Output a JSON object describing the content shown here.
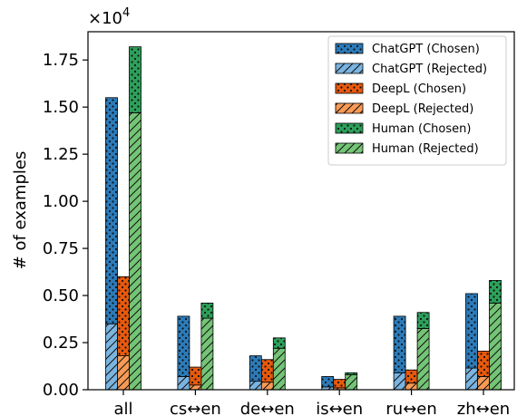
{
  "chart_data": {
    "type": "bar",
    "stacked": true,
    "grouped": true,
    "categories": [
      "all",
      "cs↔en",
      "de↔en",
      "is↔en",
      "ru↔en",
      "zh↔en"
    ],
    "scale_label": "×10",
    "scale_exponent": "4",
    "ylabel": "# of examples",
    "xlabel": "",
    "ylim": [
      0,
      19000
    ],
    "yticks": [
      0,
      2500,
      5000,
      7500,
      10000,
      12500,
      15000,
      17500
    ],
    "ytick_labels": [
      "0.00",
      "0.25",
      "0.50",
      "0.75",
      "1.00",
      "1.25",
      "1.50",
      "1.75"
    ],
    "grid": false,
    "legend_position": "top-right",
    "groups": [
      {
        "name": "ChatGPT",
        "color": "#2b7bba",
        "light_color": "#7ab4e0",
        "rejected": [
          3500,
          700,
          450,
          150,
          900,
          1150
        ],
        "chosen": [
          12000,
          3200,
          1350,
          550,
          3000,
          3950
        ]
      },
      {
        "name": "DeepL",
        "color": "#e8590c",
        "light_color": "#f89a55",
        "rejected": [
          1800,
          250,
          400,
          100,
          350,
          700
        ],
        "chosen": [
          4200,
          950,
          1200,
          450,
          700,
          1350
        ]
      },
      {
        "name": "Human",
        "color": "#2ca05a",
        "light_color": "#74c476",
        "rejected": [
          14700,
          3800,
          2200,
          800,
          3250,
          4600
        ],
        "chosen": [
          3500,
          800,
          550,
          100,
          850,
          1200
        ]
      }
    ],
    "legend": [
      {
        "label": "ChatGPT (Chosen)",
        "group": 0,
        "kind": "chosen"
      },
      {
        "label": "ChatGPT (Rejected)",
        "group": 0,
        "kind": "rejected"
      },
      {
        "label": "DeepL (Chosen)",
        "group": 1,
        "kind": "chosen"
      },
      {
        "label": "DeepL (Rejected)",
        "group": 1,
        "kind": "rejected"
      },
      {
        "label": "Human (Chosen)",
        "group": 2,
        "kind": "chosen"
      },
      {
        "label": "Human (Rejected)",
        "group": 2,
        "kind": "rejected"
      }
    ]
  }
}
